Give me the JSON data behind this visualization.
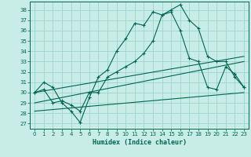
{
  "xlabel": "Humidex (Indice chaleur)",
  "xlim": [
    -0.5,
    23.5
  ],
  "ylim": [
    26.5,
    38.8
  ],
  "yticks": [
    27,
    28,
    29,
    30,
    31,
    32,
    33,
    34,
    35,
    36,
    37,
    38
  ],
  "xticks": [
    0,
    1,
    2,
    3,
    4,
    5,
    6,
    7,
    8,
    9,
    10,
    11,
    12,
    13,
    14,
    15,
    16,
    17,
    18,
    19,
    20,
    21,
    22,
    23
  ],
  "bg_color": "#c8ece6",
  "grid_color": "#9dd4ca",
  "line_color": "#006655",
  "curve1_x": [
    0,
    1,
    2,
    3,
    4,
    5,
    6,
    7,
    8,
    9,
    10,
    11,
    12,
    13,
    14,
    15,
    16,
    17,
    18,
    19,
    20,
    21,
    22,
    23
  ],
  "curve1_y": [
    30.0,
    31.0,
    30.5,
    29.0,
    28.2,
    27.1,
    29.5,
    31.5,
    32.2,
    34.0,
    35.2,
    36.7,
    36.5,
    37.8,
    37.5,
    38.0,
    38.5,
    37.0,
    36.2,
    33.5,
    33.0,
    33.0,
    31.5,
    30.5
  ],
  "curve2_x": [
    0,
    1,
    2,
    3,
    4,
    5,
    6,
    7,
    8,
    9,
    10,
    11,
    12,
    13,
    14,
    15,
    16,
    17,
    18,
    19,
    20,
    21,
    22,
    23
  ],
  "curve2_y": [
    30.0,
    30.3,
    29.0,
    29.2,
    28.8,
    28.2,
    30.0,
    30.0,
    31.5,
    32.0,
    32.5,
    33.0,
    33.8,
    35.0,
    37.5,
    37.8,
    36.0,
    33.3,
    33.0,
    30.5,
    30.3,
    32.5,
    31.8,
    30.5
  ],
  "line3_x": [
    0,
    23
  ],
  "line3_y": [
    30.0,
    33.5
  ],
  "line4_x": [
    0,
    23
  ],
  "line4_y": [
    29.0,
    33.0
  ],
  "line5_x": [
    0,
    23
  ],
  "line5_y": [
    28.2,
    30.0
  ]
}
